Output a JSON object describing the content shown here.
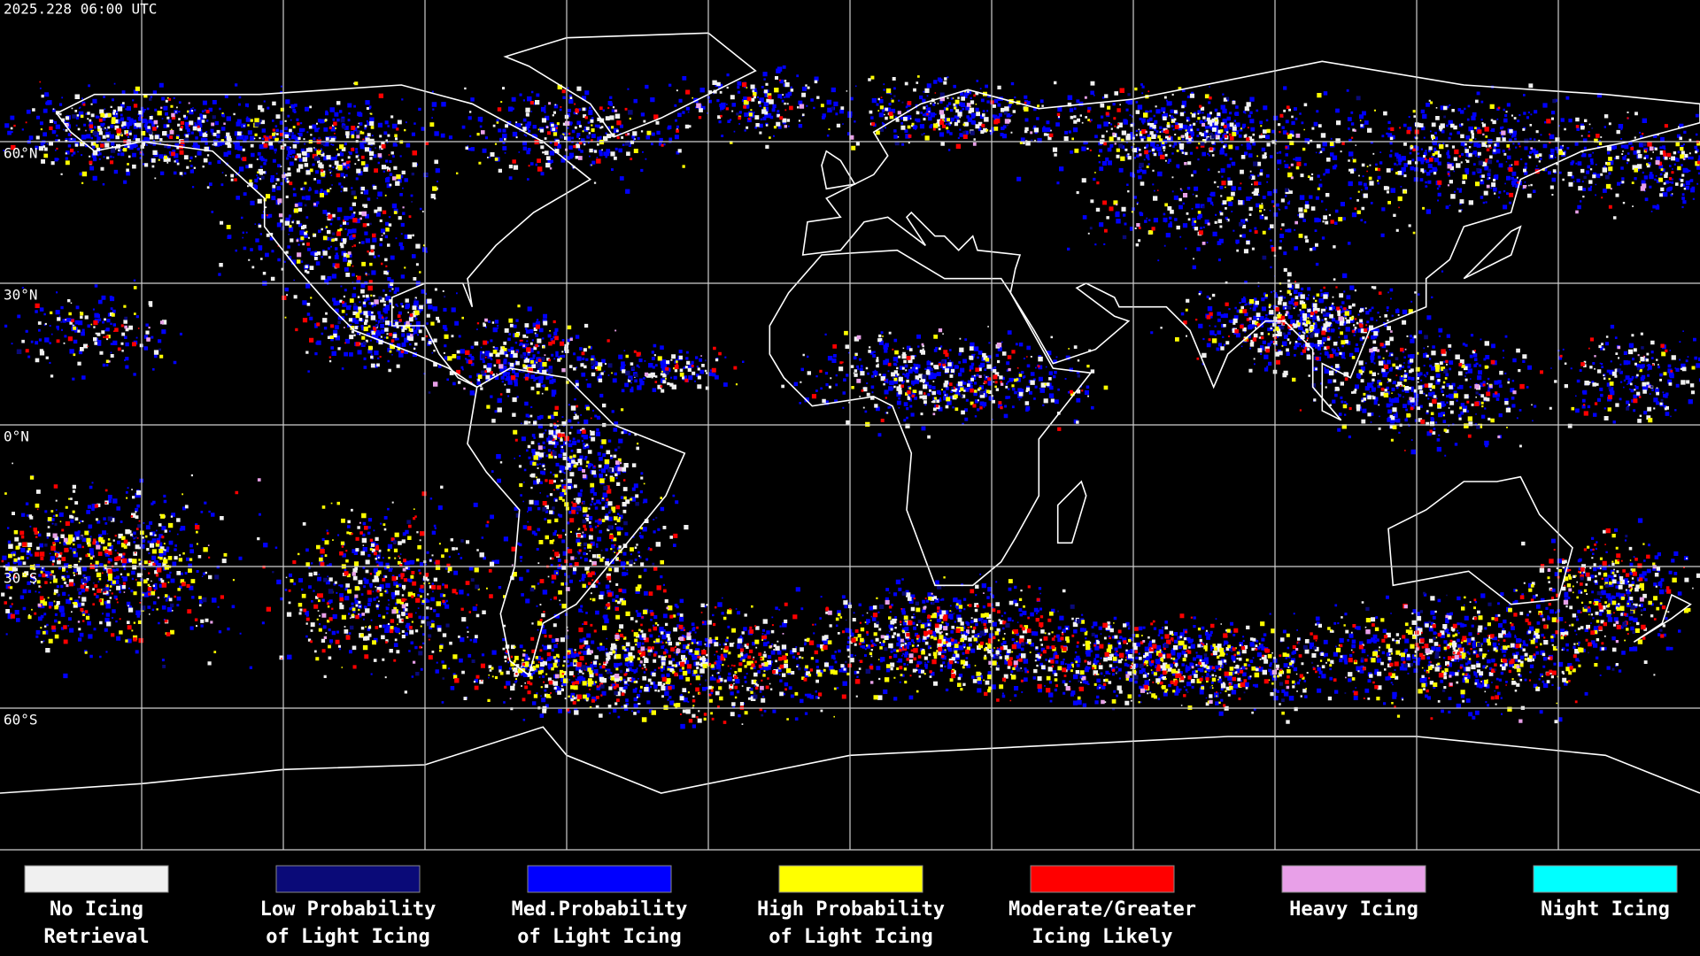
{
  "timestamp": "2025.228 06:00 UTC",
  "lat_labels": [
    "60°N",
    "30°N",
    "0°N",
    "30°S",
    "60°S"
  ],
  "legend": [
    {
      "label": [
        "No Icing",
        "Retrieval"
      ],
      "color": "#f0f0f0"
    },
    {
      "label": [
        "Low Probability",
        "of Light Icing"
      ],
      "color": "#0a0a78"
    },
    {
      "label": [
        "Med.Probability",
        "of Light Icing"
      ],
      "color": "#0000ff"
    },
    {
      "label": [
        "High Probability",
        "of Light Icing"
      ],
      "color": "#ffff00"
    },
    {
      "label": [
        "Moderate/Greater",
        "Icing Likely"
      ],
      "color": "#ff0000"
    },
    {
      "label": [
        "Heavy Icing"
      ],
      "color": "#e8a0e8"
    },
    {
      "label": [
        "Night Icing"
      ],
      "color": "#00ffff"
    }
  ]
}
